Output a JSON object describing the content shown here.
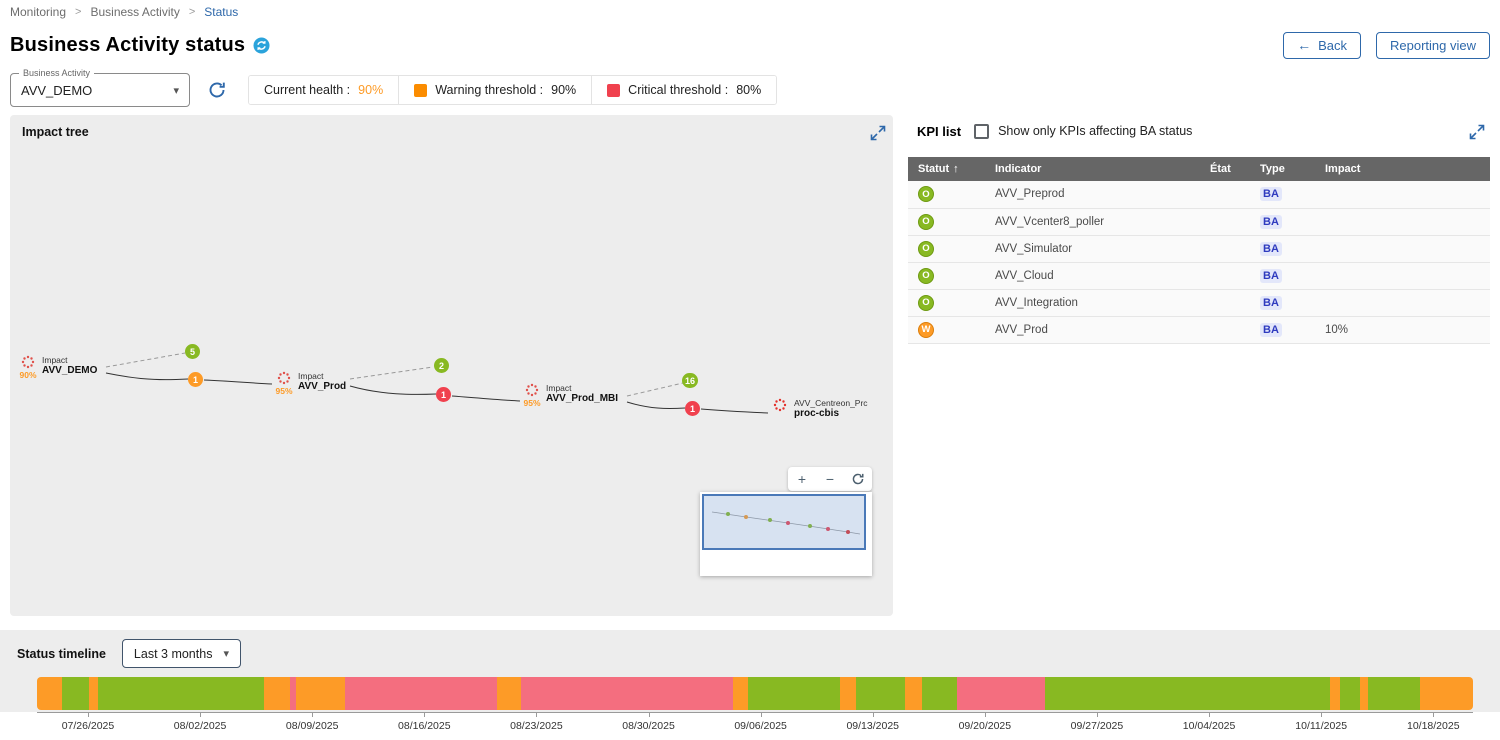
{
  "breadcrumb": {
    "items": [
      "Monitoring",
      "Business Activity",
      "Status"
    ],
    "separator": ">"
  },
  "header": {
    "title": "Business Activity status",
    "back_label": "Back",
    "reporting_label": "Reporting view"
  },
  "controls": {
    "ba_select": {
      "label": "Business Activity",
      "value": "AVV_DEMO"
    },
    "legend": [
      {
        "label": "Current health :",
        "value": "90%"
      },
      {
        "label": "Warning threshold :",
        "value": "90%",
        "swatch": "#FB8C00"
      },
      {
        "label": "Critical threshold :",
        "value": "80%",
        "swatch": "#F0414E"
      }
    ]
  },
  "impact_tree": {
    "title": "Impact tree",
    "nodes": [
      {
        "health": "90%",
        "kicker": "Impact",
        "name": "AVV_DEMO"
      },
      {
        "health": "95%",
        "kicker": "Impact",
        "name": "AVV_Prod"
      },
      {
        "health": "95%",
        "kicker": "Impact",
        "name": "AVV_Prod_MBI"
      },
      {
        "health": "",
        "kicker": "AVV_Centreon_Prc",
        "name": "proc-cbis"
      }
    ],
    "badges": [
      {
        "value": "5",
        "status": "ok"
      },
      {
        "value": "1",
        "status": "warning"
      },
      {
        "value": "2",
        "status": "ok"
      },
      {
        "value": "1",
        "status": "critical"
      },
      {
        "value": "16",
        "status": "ok"
      },
      {
        "value": "1",
        "status": "critical"
      }
    ],
    "zoom": {
      "in": "+",
      "out": "−"
    }
  },
  "kpi_list": {
    "title": "KPI list",
    "filter_label": "Show only KPIs affecting BA status",
    "filter_checked": false,
    "columns": [
      "Statut",
      "Indicator",
      "État",
      "Type",
      "Impact"
    ],
    "sort": {
      "column": "Statut",
      "direction": "asc"
    },
    "rows": [
      {
        "status": "O",
        "level": "ok",
        "indicator": "AVV_Preprod",
        "etat": "",
        "type": "BA",
        "impact": ""
      },
      {
        "status": "O",
        "level": "ok",
        "indicator": "AVV_Vcenter8_poller",
        "etat": "",
        "type": "BA",
        "impact": ""
      },
      {
        "status": "O",
        "level": "ok",
        "indicator": "AVV_Simulator",
        "etat": "",
        "type": "BA",
        "impact": ""
      },
      {
        "status": "O",
        "level": "ok",
        "indicator": "AVV_Cloud",
        "etat": "",
        "type": "BA",
        "impact": ""
      },
      {
        "status": "O",
        "level": "ok",
        "indicator": "AVV_Integration",
        "etat": "",
        "type": "BA",
        "impact": ""
      },
      {
        "status": "W",
        "level": "warning",
        "indicator": "AVV_Prod",
        "etat": "",
        "type": "BA",
        "impact": "10%"
      }
    ]
  },
  "timeline": {
    "title": "Status timeline",
    "range_value": "Last 3 months"
  },
  "chart_data": {
    "type": "bar",
    "variant": "status-timeline-strip",
    "title": "Status timeline",
    "x_tick_labels": [
      "07/26/2025",
      "08/02/2025",
      "08/09/2025",
      "08/16/2025",
      "08/23/2025",
      "08/30/2025",
      "09/06/2025",
      "09/13/2025",
      "09/20/2025",
      "09/27/2025",
      "10/04/2025",
      "10/11/2025",
      "10/18/2025"
    ],
    "first_tick_offset_pct": 3.55,
    "tick_spacing_pct": 7.807,
    "status_colors": {
      "ok": "#88B922",
      "warning": "#FD9B27",
      "critical": "#F46E7F"
    },
    "segments": [
      {
        "status": "warning",
        "width_pct": 1.74
      },
      {
        "status": "ok",
        "width_pct": 1.88
      },
      {
        "status": "warning",
        "width_pct": 0.63
      },
      {
        "status": "ok",
        "width_pct": 11.56
      },
      {
        "status": "warning",
        "width_pct": 1.81
      },
      {
        "status": "critical",
        "width_pct": 0.42
      },
      {
        "status": "warning",
        "width_pct": 3.41
      },
      {
        "status": "critical",
        "width_pct": 10.58
      },
      {
        "status": "warning",
        "width_pct": 1.67
      },
      {
        "status": "critical",
        "width_pct": 14.76
      },
      {
        "status": "warning",
        "width_pct": 1.04
      },
      {
        "status": "ok",
        "width_pct": 6.41
      },
      {
        "status": "warning",
        "width_pct": 1.11
      },
      {
        "status": "ok",
        "width_pct": 3.41
      },
      {
        "status": "warning",
        "width_pct": 1.18
      },
      {
        "status": "ok",
        "width_pct": 2.44
      },
      {
        "status": "critical",
        "width_pct": 6.13
      },
      {
        "status": "ok",
        "width_pct": 19.85
      },
      {
        "status": "warning",
        "width_pct": 0.7
      },
      {
        "status": "ok",
        "width_pct": 1.39
      },
      {
        "status": "warning",
        "width_pct": 0.56
      },
      {
        "status": "ok",
        "width_pct": 3.62
      },
      {
        "status": "warning",
        "width_pct": 3.69
      }
    ]
  },
  "icons": {
    "sort_asc": "↑",
    "caret_down": "▾",
    "back_arrow": "←"
  },
  "colors": {
    "accent": "#2E68AA",
    "ok": "#88B922",
    "warning": "#FD9B27",
    "critical": "#F0414E",
    "panel_bg": "#EDEDED",
    "table_header_bg": "#666666",
    "title_icon": "#2BA3DB"
  }
}
